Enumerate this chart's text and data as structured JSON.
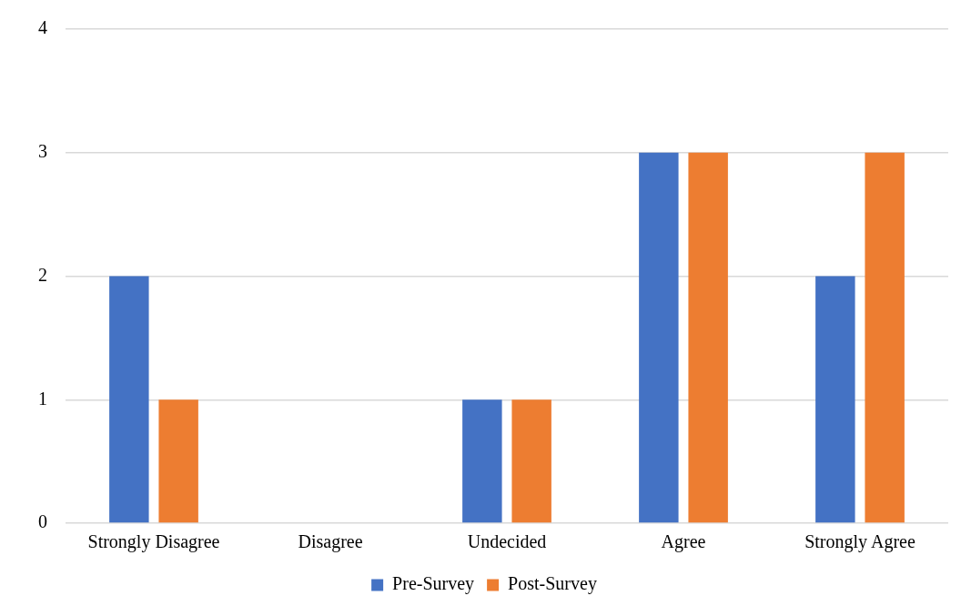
{
  "chart_data": {
    "type": "bar",
    "categories": [
      "Strongly Disagree",
      "Disagree",
      "Undecided",
      "Agree",
      "Strongly Agree"
    ],
    "series": [
      {
        "name": "Pre-Survey",
        "color": "#4472c4",
        "values": [
          2,
          0,
          1,
          3,
          2
        ]
      },
      {
        "name": "Post-Survey",
        "color": "#ed7d31",
        "values": [
          1,
          0,
          1,
          3,
          3
        ]
      }
    ],
    "ylim": [
      0,
      4
    ],
    "yticks": [
      0,
      1,
      2,
      3,
      4
    ],
    "grid": "y",
    "legend": "bottom"
  }
}
